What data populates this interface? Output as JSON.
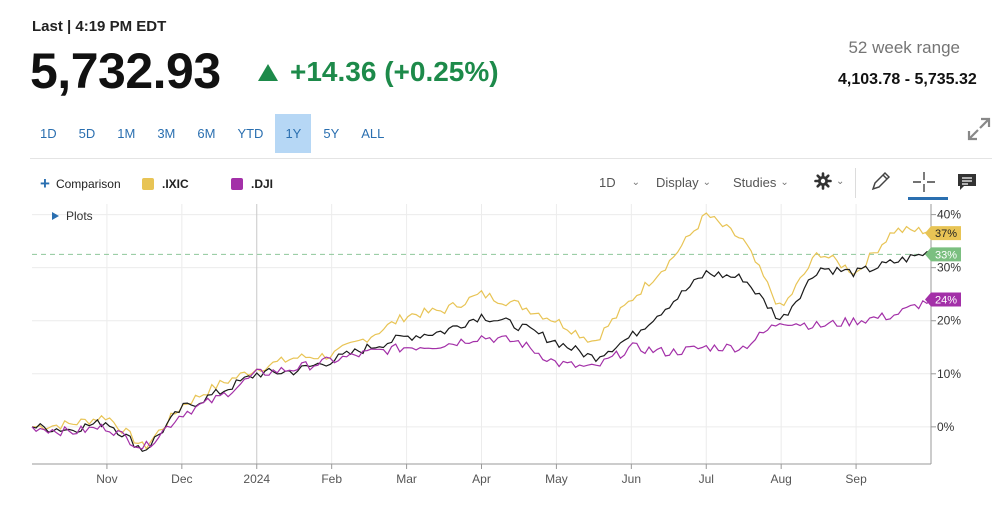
{
  "header": {
    "last_label": "Last | 4:19 PM EDT",
    "price": "5,732.93",
    "change": "+14.36 (+0.25%)",
    "range_label": "52 week range",
    "range_value": "4,103.78 - 5,735.32"
  },
  "time_ranges": [
    {
      "label": "1D",
      "active": false
    },
    {
      "label": "5D",
      "active": false
    },
    {
      "label": "1M",
      "active": false
    },
    {
      "label": "3M",
      "active": false
    },
    {
      "label": "6M",
      "active": false
    },
    {
      "label": "YTD",
      "active": false
    },
    {
      "label": "1Y",
      "active": true
    },
    {
      "label": "5Y",
      "active": false
    },
    {
      "label": "ALL",
      "active": false
    }
  ],
  "toolbar": {
    "comparison_label": "Comparison",
    "interval_label": "1D",
    "display_label": "Display",
    "studies_label": "Studies",
    "plots_label": "Plots"
  },
  "chart_data": {
    "type": "line",
    "x_ticks": [
      "Nov",
      "Dec",
      "2024",
      "Feb",
      "Mar",
      "Apr",
      "May",
      "Jun",
      "Jul",
      "Aug",
      "Sep"
    ],
    "y_ticks": [
      "40%",
      "30%",
      "20%",
      "10%",
      "0%"
    ],
    "ylim": [
      -7,
      42
    ],
    "grid": true,
    "reference_line": 32.5,
    "x": [
      0,
      0.5,
      1,
      1.5,
      2,
      2.5,
      3,
      3.5,
      4,
      4.5,
      5,
      5.5,
      6,
      6.5,
      7,
      7.5,
      8,
      8.5,
      9,
      9.5,
      10,
      10.5,
      11,
      11.5,
      12
    ],
    "series": [
      {
        "name": ".IXIC",
        "color": "#e8c455",
        "label": "37%",
        "label_value": 36.5,
        "values": [
          0,
          0.5,
          2,
          -4,
          4,
          8,
          11,
          13,
          13.5,
          17,
          21,
          22,
          25,
          23,
          20,
          16,
          24,
          31,
          40,
          35,
          22,
          33,
          29,
          37,
          37
        ]
      },
      {
        "name": "",
        "color": "#1a1a1a",
        "label": "33%",
        "label_value": 32.5,
        "values": [
          0,
          -0.5,
          1,
          -4.5,
          3.5,
          6.5,
          10,
          10.5,
          12.5,
          15,
          17,
          18,
          21,
          19,
          16,
          13,
          17,
          23,
          29,
          28,
          20,
          30,
          29,
          31,
          33
        ]
      },
      {
        "name": ".DJI",
        "color": "#a330a8",
        "label": "24%",
        "label_value": 24,
        "values": [
          0,
          -1,
          0,
          -4,
          2.5,
          5.5,
          10,
          11,
          12.5,
          14,
          15,
          15.5,
          17,
          16,
          12,
          11,
          15,
          14,
          15,
          15,
          20,
          19,
          20,
          21,
          24
        ]
      }
    ]
  }
}
